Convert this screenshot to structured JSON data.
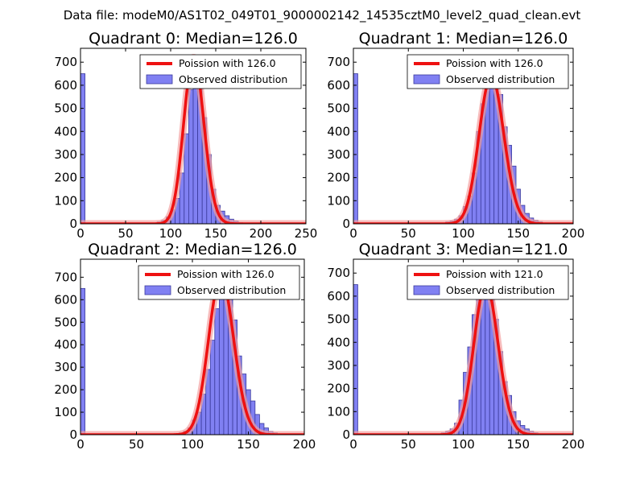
{
  "figure": {
    "suptitle": "Data file: modeM0/AS1T02_049T01_9000002142_14535cztM0_level2_quad_clean.evt"
  },
  "colors": {
    "hist_fill": "#8080f2",
    "hist_edge": "#3a3a9c",
    "fit_line": "#ee1111",
    "fit_glow": "#f4a0a0"
  },
  "chart_data": [
    {
      "type": "bar",
      "title": "Quadrant 0: Median=126.0",
      "median": 126.0,
      "xlim": [
        0,
        250
      ],
      "ylim": [
        0,
        760
      ],
      "xticks": [
        0,
        50,
        100,
        150,
        200,
        250
      ],
      "yticks": [
        0,
        100,
        200,
        300,
        400,
        500,
        600,
        700
      ],
      "legend": {
        "location": "top-right",
        "line_label": "Poission with 126.0",
        "patch_label": "Observed distribution"
      },
      "bin_width": 5,
      "bins": [
        {
          "x": 0,
          "y": 650
        },
        {
          "x": 80,
          "y": 3
        },
        {
          "x": 85,
          "y": 8
        },
        {
          "x": 90,
          "y": 15
        },
        {
          "x": 95,
          "y": 30
        },
        {
          "x": 100,
          "y": 60
        },
        {
          "x": 105,
          "y": 110
        },
        {
          "x": 110,
          "y": 220
        },
        {
          "x": 115,
          "y": 390
        },
        {
          "x": 120,
          "y": 580
        },
        {
          "x": 125,
          "y": 720
        },
        {
          "x": 130,
          "y": 640
        },
        {
          "x": 135,
          "y": 460
        },
        {
          "x": 140,
          "y": 300
        },
        {
          "x": 145,
          "y": 150
        },
        {
          "x": 150,
          "y": 80
        },
        {
          "x": 155,
          "y": 55
        },
        {
          "x": 160,
          "y": 35
        },
        {
          "x": 165,
          "y": 20
        },
        {
          "x": 170,
          "y": 12
        },
        {
          "x": 175,
          "y": 5
        }
      ]
    },
    {
      "type": "bar",
      "title": "Quadrant 1: Median=126.0",
      "median": 126.0,
      "xlim": [
        0,
        200
      ],
      "ylim": [
        0,
        760
      ],
      "xticks": [
        0,
        50,
        100,
        150,
        200
      ],
      "yticks": [
        0,
        100,
        200,
        300,
        400,
        500,
        600,
        700
      ],
      "legend": {
        "location": "top-right",
        "line_label": "Poission with 126.0",
        "patch_label": "Observed distribution"
      },
      "bin_width": 4,
      "bins": [
        {
          "x": 0,
          "y": 650
        },
        {
          "x": 80,
          "y": 3
        },
        {
          "x": 84,
          "y": 8
        },
        {
          "x": 88,
          "y": 12
        },
        {
          "x": 92,
          "y": 20
        },
        {
          "x": 96,
          "y": 35
        },
        {
          "x": 100,
          "y": 75
        },
        {
          "x": 104,
          "y": 120
        },
        {
          "x": 108,
          "y": 220
        },
        {
          "x": 112,
          "y": 400
        },
        {
          "x": 116,
          "y": 520
        },
        {
          "x": 120,
          "y": 590
        },
        {
          "x": 124,
          "y": 640
        },
        {
          "x": 128,
          "y": 610
        },
        {
          "x": 132,
          "y": 560
        },
        {
          "x": 136,
          "y": 420
        },
        {
          "x": 140,
          "y": 340
        },
        {
          "x": 144,
          "y": 250
        },
        {
          "x": 148,
          "y": 150
        },
        {
          "x": 152,
          "y": 80
        },
        {
          "x": 156,
          "y": 45
        },
        {
          "x": 160,
          "y": 25
        },
        {
          "x": 164,
          "y": 15
        },
        {
          "x": 168,
          "y": 8
        },
        {
          "x": 172,
          "y": 4
        }
      ]
    },
    {
      "type": "bar",
      "title": "Quadrant 2: Median=126.0",
      "median": 126.0,
      "xlim": [
        0,
        200
      ],
      "ylim": [
        0,
        780
      ],
      "xticks": [
        0,
        50,
        100,
        150,
        200
      ],
      "yticks": [
        0,
        100,
        200,
        300,
        400,
        500,
        600,
        700
      ],
      "legend": {
        "location": "top-right",
        "line_label": "Poission with 126.0",
        "patch_label": "Observed distribution"
      },
      "bin_width": 4,
      "bins": [
        {
          "x": 0,
          "y": 650
        },
        {
          "x": 84,
          "y": 3
        },
        {
          "x": 88,
          "y": 8
        },
        {
          "x": 92,
          "y": 15
        },
        {
          "x": 96,
          "y": 30
        },
        {
          "x": 100,
          "y": 65
        },
        {
          "x": 104,
          "y": 100
        },
        {
          "x": 108,
          "y": 180
        },
        {
          "x": 112,
          "y": 290
        },
        {
          "x": 116,
          "y": 420
        },
        {
          "x": 120,
          "y": 560
        },
        {
          "x": 124,
          "y": 690
        },
        {
          "x": 128,
          "y": 700
        },
        {
          "x": 132,
          "y": 660
        },
        {
          "x": 136,
          "y": 510
        },
        {
          "x": 140,
          "y": 350
        },
        {
          "x": 144,
          "y": 270
        },
        {
          "x": 148,
          "y": 200
        },
        {
          "x": 152,
          "y": 150
        },
        {
          "x": 156,
          "y": 90
        },
        {
          "x": 160,
          "y": 50
        },
        {
          "x": 164,
          "y": 30
        },
        {
          "x": 168,
          "y": 15
        },
        {
          "x": 172,
          "y": 8
        },
        {
          "x": 176,
          "y": 4
        }
      ]
    },
    {
      "type": "bar",
      "title": "Quadrant 3: Median=121.0",
      "median": 121.0,
      "xlim": [
        0,
        200
      ],
      "ylim": [
        0,
        760
      ],
      "xticks": [
        0,
        50,
        100,
        150,
        200
      ],
      "yticks": [
        0,
        100,
        200,
        300,
        400,
        500,
        600,
        700
      ],
      "legend": {
        "location": "top-right",
        "line_label": "Poission with 121.0",
        "patch_label": "Observed distribution"
      },
      "bin_width": 4,
      "bins": [
        {
          "x": 0,
          "y": 650
        },
        {
          "x": 76,
          "y": 3
        },
        {
          "x": 80,
          "y": 8
        },
        {
          "x": 84,
          "y": 15
        },
        {
          "x": 88,
          "y": 25
        },
        {
          "x": 92,
          "y": 50
        },
        {
          "x": 96,
          "y": 150
        },
        {
          "x": 100,
          "y": 270
        },
        {
          "x": 104,
          "y": 380
        },
        {
          "x": 108,
          "y": 520
        },
        {
          "x": 112,
          "y": 600
        },
        {
          "x": 116,
          "y": 650
        },
        {
          "x": 120,
          "y": 640
        },
        {
          "x": 124,
          "y": 600
        },
        {
          "x": 128,
          "y": 500
        },
        {
          "x": 132,
          "y": 360
        },
        {
          "x": 136,
          "y": 230
        },
        {
          "x": 140,
          "y": 170
        },
        {
          "x": 144,
          "y": 100
        },
        {
          "x": 148,
          "y": 60
        },
        {
          "x": 152,
          "y": 40
        },
        {
          "x": 156,
          "y": 25
        },
        {
          "x": 160,
          "y": 15
        },
        {
          "x": 164,
          "y": 8
        },
        {
          "x": 168,
          "y": 4
        }
      ]
    }
  ]
}
